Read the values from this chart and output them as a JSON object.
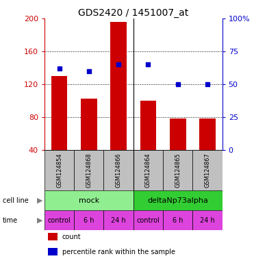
{
  "title": "GDS2420 / 1451007_at",
  "samples": [
    "GSM124854",
    "GSM124868",
    "GSM124866",
    "GSM124864",
    "GSM124865",
    "GSM124867"
  ],
  "counts": [
    130,
    102,
    196,
    100,
    78,
    78
  ],
  "percentile_ranks": [
    62,
    60,
    65,
    65,
    50,
    50
  ],
  "ylim_left": [
    40,
    200
  ],
  "ylim_right": [
    0,
    100
  ],
  "yticks_left": [
    40,
    80,
    120,
    160,
    200
  ],
  "yticks_right": [
    0,
    25,
    50,
    75,
    100
  ],
  "cell_lines": [
    {
      "label": "mock",
      "span": [
        0,
        3
      ],
      "color": "#90EE90"
    },
    {
      "label": "deltaNp73alpha",
      "span": [
        3,
        6
      ],
      "color": "#32CD32"
    }
  ],
  "time_labels": [
    "control",
    "6 h",
    "24 h",
    "control",
    "6 h",
    "24 h"
  ],
  "bar_color": "#CC0000",
  "dot_color": "#0000CC",
  "sample_bg_color": "#C0C0C0",
  "left_label_color": "#CC0000",
  "right_label_color": "#0000CC",
  "legend_items": [
    {
      "color": "#CC0000",
      "label": "count"
    },
    {
      "color": "#0000CC",
      "label": "percentile rank within the sample"
    }
  ],
  "time_color": "#DD44DD",
  "figsize": [
    3.71,
    3.84
  ],
  "dpi": 100
}
